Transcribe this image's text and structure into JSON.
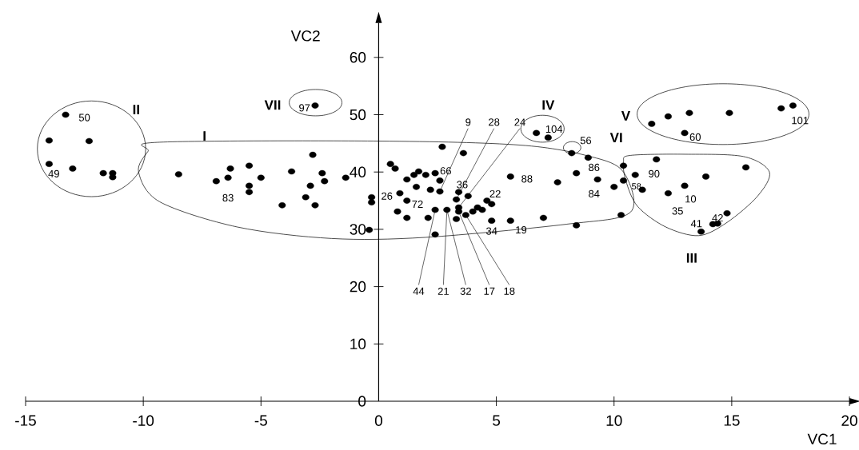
{
  "chart_data": {
    "type": "scatter",
    "xlabel": "VC1",
    "ylabel": "VC2",
    "color": "#000000",
    "marker": "circle",
    "xlim": [
      -15,
      20
    ],
    "ylim": [
      0,
      66
    ],
    "xticks": [
      -15,
      -10,
      -5,
      0,
      5,
      10,
      15,
      20
    ],
    "yticks": [
      0,
      10,
      20,
      30,
      40,
      50,
      60
    ],
    "x": [
      -13.3,
      -14.0,
      -12.3,
      -14.0,
      -13.0,
      -11.7,
      -11.3,
      -11.3,
      -2.7,
      -8.5,
      -6.3,
      -5.5,
      -6.9,
      -6.4,
      -5.0,
      -5.5,
      -5.5,
      -3.7,
      -2.8,
      -2.4,
      -2.3,
      -2.9,
      -3.1,
      -4.1,
      -2.7,
      -1.4,
      -0.4,
      -0.3,
      -0.3,
      0.5,
      0.7,
      0.8,
      0.9,
      1.2,
      1.2,
      1.2,
      1.5,
      1.7,
      1.6,
      2.0,
      2.4,
      2.2,
      2.6,
      2.6,
      2.7,
      3.6,
      2.1,
      2.4,
      2.4,
      2.9,
      3.3,
      3.4,
      3.3,
      3.4,
      3.4,
      3.8,
      3.7,
      4.0,
      4.2,
      4.4,
      4.6,
      4.8,
      4.8,
      5.6,
      5.6,
      7.0,
      7.6,
      8.4,
      8.4,
      8.2,
      8.9,
      9.3,
      10.0,
      10.3,
      10.4,
      10.4,
      10.9,
      6.7,
      7.2,
      11.6,
      12.3,
      13.2,
      14.9,
      17.1,
      17.6,
      13.0,
      11.8,
      11.2,
      12.3,
      13.0,
      13.9,
      15.6,
      14.8,
      14.4,
      14.2,
      13.7
    ],
    "values": [
      50.0,
      45.5,
      45.4,
      41.4,
      40.6,
      39.8,
      39.8,
      39.1,
      51.6,
      39.6,
      40.6,
      41.1,
      38.4,
      39.0,
      39.0,
      37.6,
      36.5,
      40.1,
      43.0,
      39.8,
      38.4,
      37.6,
      35.6,
      34.2,
      34.2,
      39.0,
      29.9,
      35.6,
      34.7,
      41.4,
      40.6,
      33.1,
      36.3,
      35.0,
      32.0,
      38.7,
      39.5,
      40.1,
      37.4,
      39.5,
      39.8,
      36.9,
      38.5,
      36.6,
      44.4,
      43.3,
      32.0,
      33.4,
      29.1,
      33.4,
      31.8,
      36.5,
      35.2,
      33.8,
      33.1,
      35.8,
      32.5,
      33.1,
      33.8,
      33.4,
      35.0,
      34.4,
      31.5,
      31.5,
      39.2,
      32.0,
      38.2,
      39.8,
      30.7,
      43.3,
      42.5,
      38.7,
      37.4,
      32.5,
      38.5,
      41.1,
      39.5,
      46.8,
      46.0,
      48.4,
      49.7,
      50.3,
      50.3,
      51.1,
      51.6,
      46.8,
      42.2,
      36.9,
      36.3,
      37.6,
      39.2,
      40.8,
      32.8,
      31.0,
      30.9,
      29.6
    ],
    "annotations": [
      "I",
      "II",
      "III",
      "IV",
      "V",
      "VI",
      "VII",
      {
        "text": "50",
        "x": -13.3,
        "y": 50.0
      },
      {
        "text": "49",
        "x": -14.0,
        "y": 41.4
      },
      {
        "text": "83",
        "x": -5.5,
        "y": 36.5
      },
      {
        "text": "97",
        "x": -2.7,
        "y": 51.6
      },
      {
        "text": "9",
        "x": 2.6,
        "y": 36.6
      },
      {
        "text": "28",
        "x": 3.3,
        "y": 35.2
      },
      {
        "text": "24",
        "x": 3.4,
        "y": 33.8
      },
      {
        "text": "104",
        "x": 7.2,
        "y": 46.0
      },
      {
        "text": "56",
        "x": 8.2,
        "y": 43.3
      },
      {
        "text": "66",
        "x": 2.6,
        "y": 38.5
      },
      {
        "text": "36",
        "x": 3.4,
        "y": 36.5
      },
      {
        "text": "26",
        "x": -0.3,
        "y": 35.6
      },
      {
        "text": "72",
        "x": 1.2,
        "y": 35.0
      },
      {
        "text": "22",
        "x": 4.6,
        "y": 35.0
      },
      {
        "text": "88",
        "x": 5.6,
        "y": 39.2
      },
      {
        "text": "86",
        "x": 8.9,
        "y": 42.5
      },
      {
        "text": "84",
        "x": 9.3,
        "y": 38.7
      },
      {
        "text": "34",
        "x": 4.8,
        "y": 31.5
      },
      {
        "text": "19",
        "x": 5.6,
        "y": 31.5
      },
      {
        "text": "44",
        "x": 2.4,
        "y": 33.4
      },
      {
        "text": "21",
        "x": 2.9,
        "y": 33.4
      },
      {
        "text": "32",
        "x": 2.9,
        "y": 33.4
      },
      {
        "text": "17",
        "x": 3.4,
        "y": 33.1
      },
      {
        "text": "18",
        "x": 3.7,
        "y": 32.5
      },
      {
        "text": "60",
        "x": 13.0,
        "y": 46.8
      },
      {
        "text": "101",
        "x": 17.6,
        "y": 51.6
      },
      {
        "text": "90",
        "x": 10.9,
        "y": 39.5
      },
      {
        "text": "58",
        "x": 10.4,
        "y": 38.5
      },
      {
        "text": "10",
        "x": 13.0,
        "y": 37.6
      },
      {
        "text": "35",
        "x": 12.3,
        "y": 36.3
      },
      {
        "text": "42",
        "x": 14.4,
        "y": 31.0
      },
      {
        "text": "41",
        "x": 13.7,
        "y": 29.6
      }
    ]
  }
}
